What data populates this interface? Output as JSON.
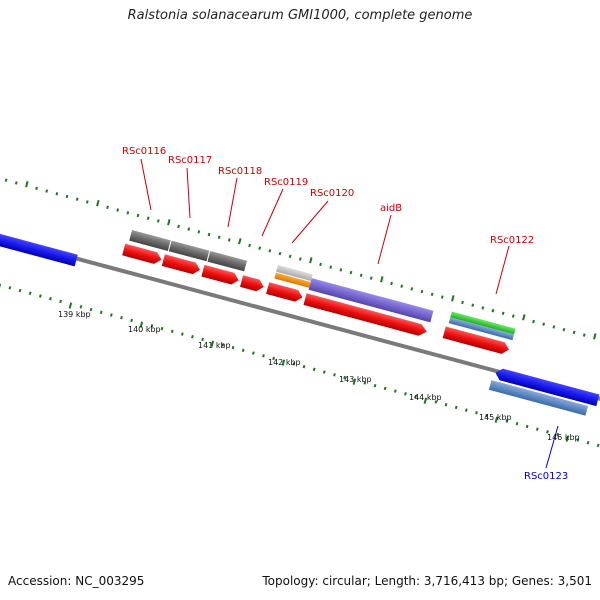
{
  "title": "Ralstonia solanacearum GMI1000, complete genome",
  "genes": {
    "RSc0116": "RSc0116",
    "RSc0117": "RSc0117",
    "RSc0118": "RSc0118",
    "RSc0119": "RSc0119",
    "RSc0120": "RSc0120",
    "aidB": "aidB",
    "RSc0122": "RSc0122",
    "RSc0123": "RSc0123"
  },
  "ticks": [
    "139 kbp",
    "140 kbp",
    "141 kbp",
    "142 kbp",
    "143 kbp",
    "144 kbp",
    "145 kbp",
    "146 kbp"
  ],
  "footer": {
    "accession": "Accession: NC_003295",
    "summary": "Topology: circular; Length: 3,716,413 bp; Genes: 3,501"
  },
  "colors": {
    "forward_cds": "#ee1111",
    "reverse_cds": "#1a1aee",
    "gene_label_forward": "#cc0000",
    "gene_label_reverse": "#0000cc",
    "backbone": "#888888",
    "tick": "#1a7a1a"
  }
}
